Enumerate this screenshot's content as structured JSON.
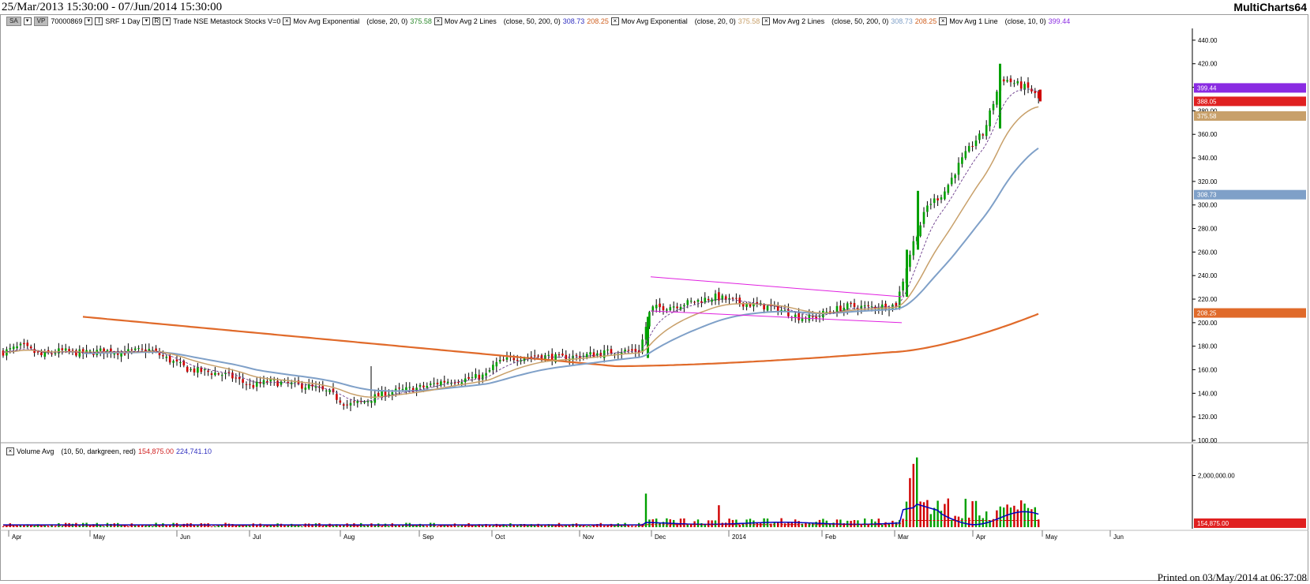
{
  "header": {
    "date_range": "25/Mar/2013 15:30:00 - 07/Jun/2014 15:30:00",
    "app_name": "MultiCharts64"
  },
  "status_bar": {
    "printed": "Printed on 03/May/2014 at 06:37:08"
  },
  "symbol_bar": {
    "sa_button": "SA",
    "vp_button": "VP",
    "symbol_code": "70000869",
    "symbol_info": "SRF  1 Day",
    "source_info": "Trade  NSE  Metastock  Stocks  V=0",
    "studies": [
      {
        "name": "Mov Avg Exponential",
        "params": "(close,  20,  0)",
        "values": [
          "375.58"
        ],
        "colors": [
          "#2e8b2e"
        ]
      },
      {
        "name": "Mov Avg 2 Lines",
        "params": "(close,  50,  200,  0)",
        "values": [
          "308.73",
          "208.25"
        ],
        "colors": [
          "#3030c0",
          "#d06020"
        ]
      },
      {
        "name": "Mov Avg Exponential",
        "params": "(close,  20,  0)",
        "values": [
          "375.58"
        ],
        "colors": [
          "#c8a06a"
        ]
      },
      {
        "name": "Mov Avg 2 Lines",
        "params": "(close,  50,  200,  0)",
        "values": [
          "308.73",
          "208.25"
        ],
        "colors": [
          "#7fa0c8",
          "#d06020"
        ]
      },
      {
        "name": "Mov Avg 1 Line",
        "params": "(close,  10,  0)",
        "values": [
          "399.44"
        ],
        "colors": [
          "#8a2be2"
        ]
      }
    ]
  },
  "volume_bar": {
    "name": "Volume Avg",
    "params": "(10,  50,  darkgreen,  red)",
    "value1": "154,875.00",
    "value2": "224,741.10",
    "value1_color": "#d02020",
    "value2_color": "#3030c0"
  },
  "chart_data": [
    {
      "type": "candlestick",
      "title": "SRF  1 Day",
      "x_axis_labels": [
        "Apr",
        "May",
        "Jun",
        "Jul",
        "Aug",
        "Sep",
        "Oct",
        "Nov",
        "Dec",
        "2014",
        "Feb",
        "Mar",
        "Apr",
        "May",
        "Jun"
      ],
      "y_ticks": [
        "100.00",
        "120.00",
        "140.00",
        "160.00",
        "180.00",
        "200.00",
        "220.00",
        "240.00",
        "260.00",
        "280.00",
        "300.00",
        "320.00",
        "340.00",
        "360.00",
        "380.00",
        "400.00",
        "420.00",
        "440.00"
      ],
      "ylim": [
        100,
        450
      ],
      "close_path": [
        [
          "Apr-01",
          175
        ],
        [
          "Apr-08",
          180
        ],
        [
          "Apr-15",
          172
        ],
        [
          "Apr-22",
          176
        ],
        [
          "May-01",
          174
        ],
        [
          "May-08",
          176
        ],
        [
          "May-15",
          175
        ],
        [
          "May-22",
          177
        ],
        [
          "Jun-01",
          168
        ],
        [
          "Jun-08",
          160
        ],
        [
          "Jun-15",
          158
        ],
        [
          "Jun-22",
          155
        ],
        [
          "Jul-01",
          146
        ],
        [
          "Jul-08",
          150
        ],
        [
          "Jul-15",
          148
        ],
        [
          "Jul-22",
          146
        ],
        [
          "Aug-01",
          140
        ],
        [
          "Aug-08",
          130
        ],
        [
          "Aug-15",
          133
        ],
        [
          "Aug-22",
          140
        ],
        [
          "Sep-01",
          145
        ],
        [
          "Sep-08",
          150
        ],
        [
          "Sep-15",
          152
        ],
        [
          "Sep-22",
          155
        ],
        [
          "Oct-01",
          165
        ],
        [
          "Oct-08",
          170
        ],
        [
          "Oct-15",
          172
        ],
        [
          "Oct-22",
          170
        ],
        [
          "Nov-01",
          172
        ],
        [
          "Nov-08",
          174
        ],
        [
          "Nov-15",
          176
        ],
        [
          "Nov-22",
          176
        ],
        [
          "Nov-29",
          212
        ],
        [
          "Dec-08",
          214
        ],
        [
          "Dec-15",
          218
        ],
        [
          "Dec-22",
          222
        ],
        [
          "Jan-01",
          218
        ],
        [
          "Jan-08",
          215
        ],
        [
          "Jan-15",
          212
        ],
        [
          "Jan-22",
          205
        ],
        [
          "Feb-01",
          204
        ],
        [
          "Feb-08",
          210
        ],
        [
          "Feb-15",
          214
        ],
        [
          "Feb-22",
          213
        ],
        [
          "Mar-01",
          215
        ],
        [
          "Mar-08",
          265
        ],
        [
          "Mar-15",
          300
        ],
        [
          "Mar-22",
          310
        ],
        [
          "Apr-01",
          335
        ],
        [
          "Apr-08",
          355
        ],
        [
          "Apr-15",
          360
        ],
        [
          "Apr-22",
          408
        ],
        [
          "Apr-25",
          402
        ],
        [
          "Apr-28",
          398
        ],
        [
          "Apr-30",
          388.05
        ]
      ],
      "markers": [
        {
          "label": "399.44",
          "color": "#8a2be2",
          "value": 399.44
        },
        {
          "label": "388.05",
          "color": "#e02020",
          "value": 388.05
        },
        {
          "label": "375.58",
          "color": "#c8a06a",
          "value": 375.58
        },
        {
          "label": "308.73",
          "color": "#7fa0c8",
          "value": 308.73
        },
        {
          "label": "208.25",
          "color": "#e06a2a",
          "value": 208.25
        }
      ],
      "series": [
        {
          "name": "Mov Avg 1 Line (close, 10, 0)",
          "color": "#8a2be2",
          "last": 399.44
        },
        {
          "name": "Mov Avg Exponential (close, 20, 0)",
          "color": "#c8a06a",
          "last": 375.58
        },
        {
          "name": "Mov Avg 2 Lines (close, 50, 200, 0)",
          "color": "#7fa0c8",
          "last": 308.73
        },
        {
          "name": "Mov Avg 2 Lines (close, 50, 200, 0)",
          "color": "#e06a2a",
          "last": 208.25
        }
      ],
      "trendlines": "magenta descending channel (Dec 2013 - Mar 2014)"
    },
    {
      "type": "bar",
      "title": "Volume Avg",
      "y_ticks": [
        "2,000,000.00"
      ],
      "last_label": "154,875.00",
      "peak_volume_approx": 2700000
    }
  ]
}
